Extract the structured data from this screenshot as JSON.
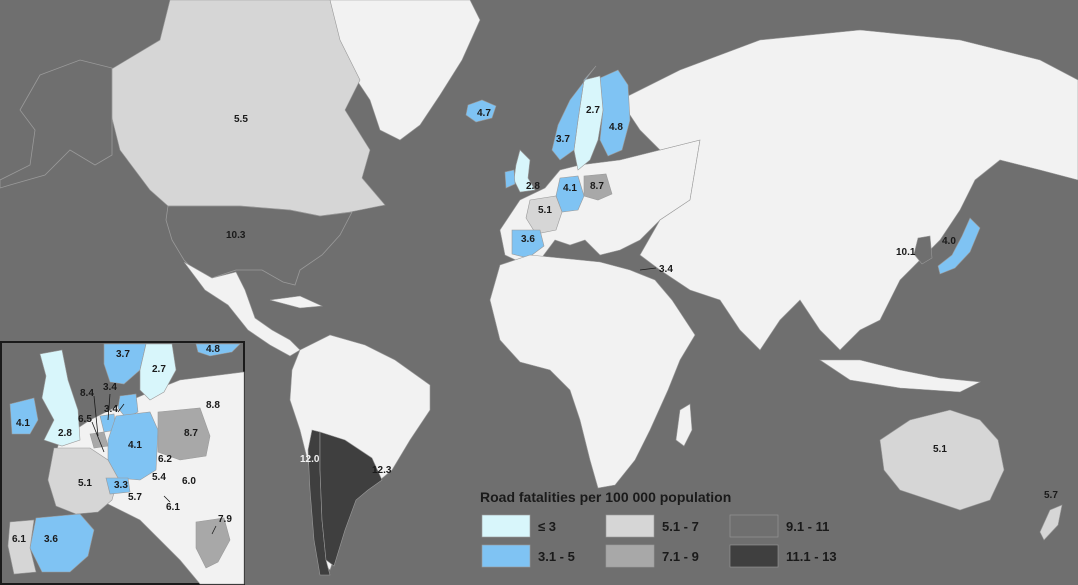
{
  "legend": {
    "title": "Road fatalities per 100 000 population",
    "classes": [
      {
        "label": "≤ 3",
        "color": "#d8f6fb"
      },
      {
        "label": "3.1 - 5",
        "color": "#7fc3f3"
      },
      {
        "label": "5.1 - 7",
        "color": "#d6d6d6"
      },
      {
        "label": "7.1 - 9",
        "color": "#a8a8a8"
      },
      {
        "label": "9.1 - 11",
        "color": "#6f6f6f"
      },
      {
        "label": "11.1 - 13",
        "color": "#3f3f3f"
      }
    ]
  },
  "colors": {
    "ocean": "#6f6f6f",
    "land": "#f2f2f2",
    "border": "#9a9a9a"
  },
  "map_labels": {
    "canada": "5.5",
    "usa": "10.3",
    "iceland": "4.7",
    "norway": "3.7",
    "sweden": "2.7",
    "finland": "4.8",
    "uk": "2.8",
    "germany": "4.1",
    "poland": "8.7",
    "france": "5.1",
    "spain": "3.6",
    "israel": "3.4",
    "korea": "10.1",
    "japan": "4.0",
    "chile": "12.0",
    "argentina": "12.3",
    "australia": "5.1",
    "new_zealand": "5.7"
  },
  "inset_labels": {
    "norway": "3.7",
    "sweden": "2.7",
    "finland": "4.8",
    "ireland": "4.1",
    "uk": "2.8",
    "netherlands": "3.4",
    "belgium": "8.4",
    "lux": "6.5",
    "denmark": "3.4",
    "germany": "4.1",
    "estonia": "8.8",
    "poland": "8.7",
    "czech": "6.2",
    "austria": "5.4",
    "hungary": "6.0",
    "slovenia": "6.1",
    "france": "5.1",
    "switzerland": "3.3",
    "italy": "5.7",
    "spain": "3.6",
    "portugal": "6.1",
    "greece": "7.9"
  }
}
